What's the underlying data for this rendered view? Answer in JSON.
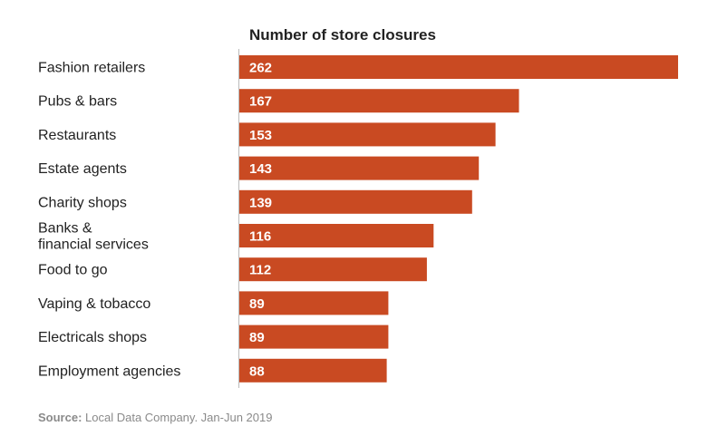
{
  "chart_data": {
    "type": "bar",
    "orientation": "horizontal",
    "title": "Number of store closures",
    "xlabel": "",
    "ylabel": "",
    "categories": [
      [
        "Fashion retailers"
      ],
      [
        "Pubs & bars"
      ],
      [
        "Restaurants"
      ],
      [
        "Estate agents"
      ],
      [
        "Charity shops"
      ],
      [
        "Banks &",
        "financial services"
      ],
      [
        "Food to go"
      ],
      [
        "Vaping & tobacco"
      ],
      [
        "Electricals shops"
      ],
      [
        "Employment agencies"
      ]
    ],
    "values": [
      262,
      167,
      153,
      143,
      139,
      116,
      112,
      89,
      89,
      88
    ],
    "value_labels": [
      "262",
      "167",
      "153",
      "143",
      "139",
      "116",
      "112",
      "89",
      "89",
      "88"
    ],
    "xlim": [
      0,
      262
    ],
    "grid": false,
    "legend": "none",
    "colors": {
      "bar": "#c94a22",
      "axis": "#bbbbbb",
      "value_text": "#ffffff",
      "label_text": "#222222",
      "source_text": "#8a8a8a"
    }
  },
  "source": {
    "label": "Source:",
    "text": " Local Data Company. Jan-Jun 2019"
  }
}
